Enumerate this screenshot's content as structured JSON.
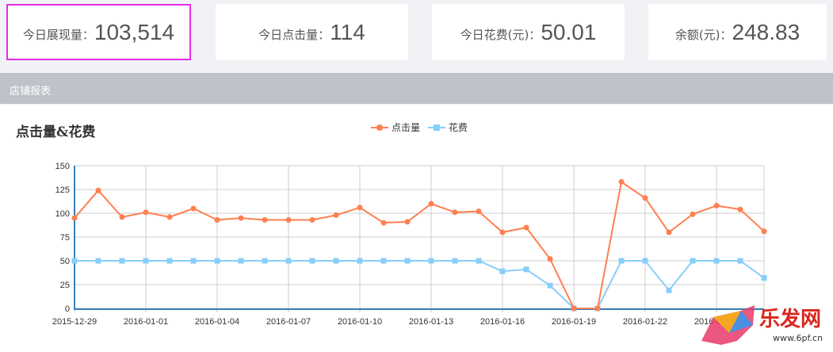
{
  "stats": [
    {
      "label": "今日展现量：",
      "value": "103,514"
    },
    {
      "label": "今日点击量：",
      "value": "114"
    },
    {
      "label": "今日花费(元)：",
      "value": "50.01"
    },
    {
      "label": "余额(元)：",
      "value": "248.83"
    }
  ],
  "section_title": "店铺报表",
  "watermark": {
    "brand": "乐发网",
    "url": "www.6pf.cn"
  },
  "chart_data": {
    "type": "line",
    "title": "点击量&花费",
    "x": [
      "2015-12-29",
      "2015-12-30",
      "2015-12-31",
      "2016-01-01",
      "2016-01-02",
      "2016-01-03",
      "2016-01-04",
      "2016-01-05",
      "2016-01-06",
      "2016-01-07",
      "2016-01-08",
      "2016-01-09",
      "2016-01-10",
      "2016-01-11",
      "2016-01-12",
      "2016-01-13",
      "2016-01-14",
      "2016-01-15",
      "2016-01-16",
      "2016-01-17",
      "2016-01-18",
      "2016-01-19",
      "2016-01-20",
      "2016-01-21",
      "2016-01-22",
      "2016-01-23",
      "2016-01-24",
      "2016-01-25",
      "2016-01-26",
      "2016-01-27"
    ],
    "x_ticks": [
      "2015-12-29",
      "2016-01-01",
      "2016-01-04",
      "2016-01-07",
      "2016-01-10",
      "2016-01-13",
      "2016-01-16",
      "2016-01-19",
      "2016-01-22",
      "2016-01-25"
    ],
    "y_ticks": [
      0,
      25,
      50,
      75,
      100,
      125,
      150
    ],
    "ylim": [
      0,
      150
    ],
    "grid": true,
    "legend": "top-center",
    "series": [
      {
        "name": "点击量",
        "color": "#ff7f50",
        "marker": "circle",
        "values": [
          95,
          124,
          96,
          101,
          96,
          105,
          93,
          95,
          93,
          93,
          93,
          98,
          106,
          90,
          91,
          110,
          101,
          102,
          80,
          85,
          52,
          0,
          0,
          133,
          116,
          80,
          99,
          108,
          104,
          81
        ]
      },
      {
        "name": "花费",
        "color": "#87cefa",
        "marker": "square",
        "values": [
          50,
          50,
          50,
          50,
          50,
          50,
          50,
          50,
          50,
          50,
          50,
          50,
          50,
          50,
          50,
          50,
          50,
          50,
          39,
          41,
          24,
          0,
          0,
          50,
          50,
          19,
          50,
          50,
          50,
          32
        ]
      }
    ]
  }
}
